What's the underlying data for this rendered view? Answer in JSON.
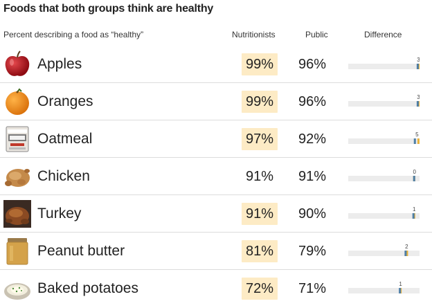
{
  "title": "Foods that both groups think are healthy",
  "headers": {
    "subtitle": "Percent describing a food as “healthy”",
    "nutritionists": "Nutritionists",
    "public": "Public",
    "difference": "Difference"
  },
  "colors": {
    "highlight": "#fdebc5",
    "nutritionists_marker": "#e8b23a",
    "public_marker": "#4f7fa6",
    "track": "#ececec"
  },
  "chart_data": {
    "type": "table",
    "columns": [
      "Nutritionists",
      "Public",
      "Difference"
    ],
    "diff_axis_range": [
      -100,
      0
    ],
    "rows": [
      {
        "food": "Apples",
        "icon": "apple-icon",
        "nutritionists": 99,
        "public": 96,
        "difference": 3,
        "nutritionists_label": "99%",
        "public_label": "96%",
        "difference_label": "3",
        "highlighted": true
      },
      {
        "food": "Oranges",
        "icon": "orange-icon",
        "nutritionists": 99,
        "public": 96,
        "difference": 3,
        "nutritionists_label": "99%",
        "public_label": "96%",
        "difference_label": "3",
        "highlighted": true
      },
      {
        "food": "Oatmeal",
        "icon": "oatmeal-icon",
        "nutritionists": 97,
        "public": 92,
        "difference": 5,
        "nutritionists_label": "97%",
        "public_label": "92%",
        "difference_label": "5",
        "highlighted": true
      },
      {
        "food": "Chicken",
        "icon": "chicken-icon",
        "nutritionists": 91,
        "public": 91,
        "difference": 0,
        "nutritionists_label": "91%",
        "public_label": "91%",
        "difference_label": "0",
        "highlighted": false
      },
      {
        "food": "Turkey",
        "icon": "turkey-icon",
        "nutritionists": 91,
        "public": 90,
        "difference": 1,
        "nutritionists_label": "91%",
        "public_label": "90%",
        "difference_label": "1",
        "highlighted": true
      },
      {
        "food": "Peanut butter",
        "icon": "peanut-butter-icon",
        "nutritionists": 81,
        "public": 79,
        "difference": 2,
        "nutritionists_label": "81%",
        "public_label": "79%",
        "difference_label": "2",
        "highlighted": true
      },
      {
        "food": "Baked potatoes",
        "icon": "baked-potato-icon",
        "nutritionists": 72,
        "public": 71,
        "difference": 1,
        "nutritionists_label": "72%",
        "public_label": "71%",
        "difference_label": "1",
        "highlighted": true
      }
    ]
  }
}
